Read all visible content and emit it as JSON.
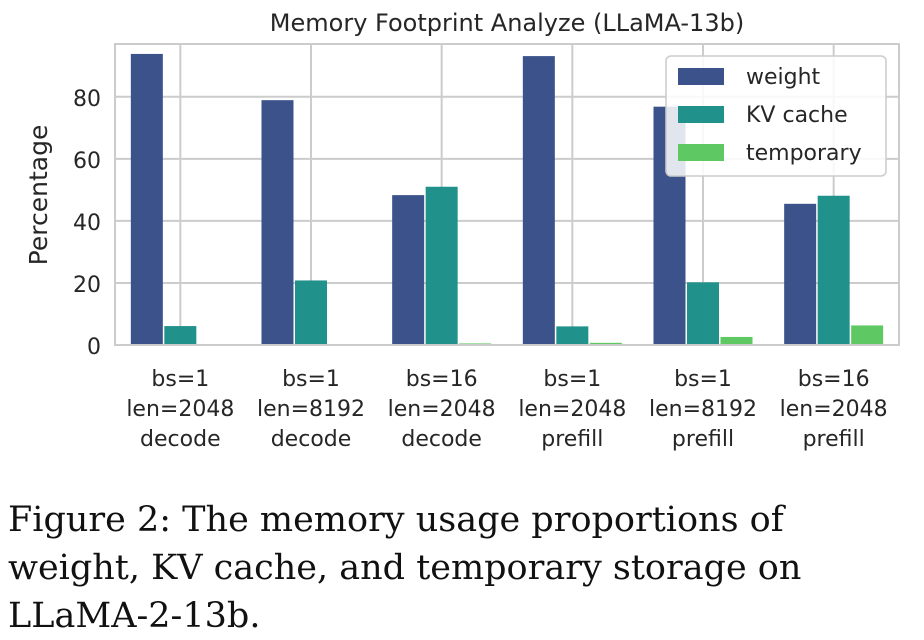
{
  "chart_data": {
    "type": "bar",
    "title": "Memory Footprint Analyze (LLaMA-13b)",
    "xlabel": "",
    "ylabel": "Percentage",
    "ylim": [
      0,
      97
    ],
    "yticks": [
      0,
      20,
      40,
      60,
      80
    ],
    "grid": true,
    "legend_position": "top-right",
    "categories": [
      [
        "bs=1",
        "len=2048",
        "decode"
      ],
      [
        "bs=1",
        "len=8192",
        "decode"
      ],
      [
        "bs=16",
        "len=2048",
        "decode"
      ],
      [
        "bs=1",
        "len=2048",
        "prefill"
      ],
      [
        "bs=1",
        "len=8192",
        "prefill"
      ],
      [
        "bs=16",
        "len=2048",
        "prefill"
      ]
    ],
    "series": [
      {
        "name": "weight",
        "color": "#3b528b",
        "values": [
          93.8,
          78.9,
          48.3,
          93.1,
          76.8,
          45.5
        ]
      },
      {
        "name": "KV cache",
        "color": "#21918c",
        "values": [
          6.1,
          20.8,
          51.0,
          6.0,
          20.2,
          48.1
        ]
      },
      {
        "name": "temporary",
        "color": "#5ec962",
        "values": [
          0.1,
          0.3,
          0.5,
          0.7,
          2.6,
          6.3
        ]
      }
    ]
  },
  "caption": "Figure 2: The memory usage proportions of weight, KV cache, and temporary storage on LLaMA-2-13b."
}
